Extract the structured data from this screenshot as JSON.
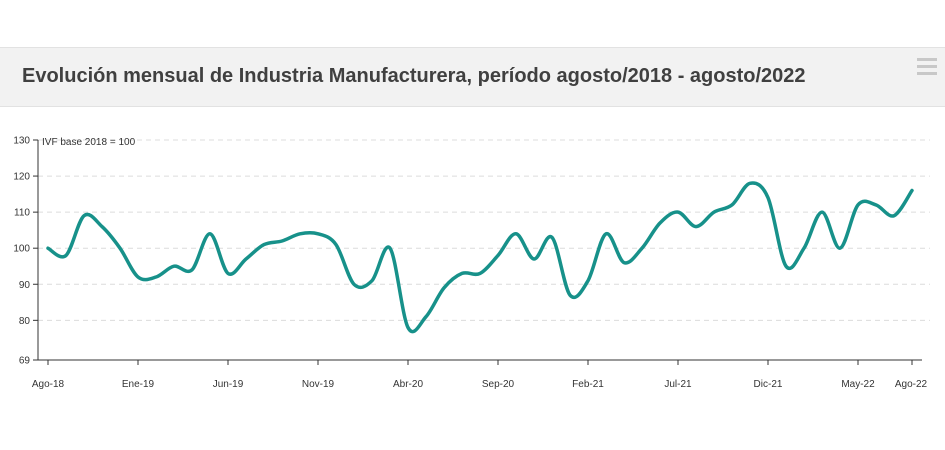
{
  "header": {
    "title": "Evolución mensual de Industria Manufacturera, período agosto/2018 - agosto/2022"
  },
  "chart_data": {
    "type": "line",
    "title": "Evolución mensual de Industria Manufacturera, período agosto/2018 - agosto/2022",
    "ylabel": "IVF base 2018 = 100",
    "xlabel": "",
    "ylim": [
      69,
      130
    ],
    "yticks": [
      69,
      80,
      90,
      100,
      110,
      120,
      130
    ],
    "grid": true,
    "line_color": "#17918a",
    "x_tick_labels": [
      "Ago-18",
      "Ene-19",
      "Jun-19",
      "Nov-19",
      "Abr-20",
      "Sep-20",
      "Feb-21",
      "Jul-21",
      "Dic-21",
      "May-22",
      "Ago-22"
    ],
    "x": [
      "Ago-18",
      "Sep-18",
      "Oct-18",
      "Nov-18",
      "Dic-18",
      "Ene-19",
      "Feb-19",
      "Mar-19",
      "Abr-19",
      "May-19",
      "Jun-19",
      "Jul-19",
      "Ago-19",
      "Sep-19",
      "Oct-19",
      "Nov-19",
      "Dic-19",
      "Ene-20",
      "Feb-20",
      "Mar-20",
      "Abr-20",
      "May-20",
      "Jun-20",
      "Jul-20",
      "Ago-20",
      "Sep-20",
      "Oct-20",
      "Nov-20",
      "Dic-20",
      "Ene-21",
      "Feb-21",
      "Mar-21",
      "Abr-21",
      "May-21",
      "Jun-21",
      "Jul-21",
      "Ago-21",
      "Sep-21",
      "Oct-21",
      "Nov-21",
      "Dic-21",
      "Ene-22",
      "Feb-22",
      "Mar-22",
      "Abr-22",
      "May-22",
      "Jun-22",
      "Jul-22",
      "Ago-22"
    ],
    "series": [
      {
        "values": [
          100,
          98,
          109,
          106,
          100,
          92,
          92,
          95,
          94,
          104,
          93,
          97,
          101,
          102,
          104,
          104,
          101,
          90,
          91,
          100,
          78,
          81,
          89,
          93,
          93,
          98,
          104,
          97,
          103,
          87,
          91,
          104,
          96,
          100,
          107,
          110,
          106,
          110,
          112,
          118,
          114,
          95,
          100,
          110,
          100,
          112,
          112,
          109,
          116
        ]
      }
    ]
  }
}
